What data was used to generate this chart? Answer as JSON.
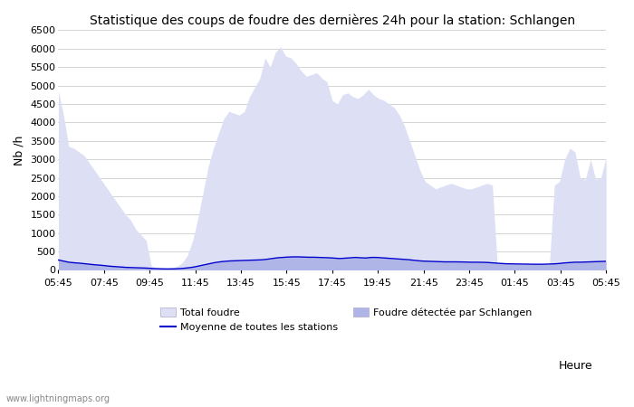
{
  "title": "Statistique des coups de foudre des dernières 24h pour la station: Schlangen",
  "xlabel": "Heure",
  "ylabel": "Nb /h",
  "watermark": "www.lightningmaps.org",
  "x_ticks": [
    "05:45",
    "07:45",
    "09:45",
    "11:45",
    "13:45",
    "15:45",
    "17:45",
    "19:45",
    "21:45",
    "23:45",
    "01:45",
    "03:45",
    "05:45"
  ],
  "ylim": [
    0,
    6500
  ],
  "yticks": [
    0,
    500,
    1000,
    1500,
    2000,
    2500,
    3000,
    3500,
    4000,
    4500,
    5000,
    5500,
    6000,
    6500
  ],
  "bg_color": "#ffffff",
  "grid_color": "#cccccc",
  "fill_total_color": "#dde0f5",
  "fill_station_color": "#b0b5e8",
  "line_color": "#0000cc",
  "total_foudre": [
    4850,
    4200,
    3350,
    3300,
    3200,
    3100,
    2900,
    2700,
    2500,
    2300,
    2100,
    1900,
    1700,
    1500,
    1350,
    1100,
    950,
    800,
    100,
    60,
    50,
    50,
    60,
    100,
    200,
    400,
    800,
    1400,
    2100,
    2800,
    3300,
    3700,
    4100,
    4300,
    4250,
    4200,
    4300,
    4700,
    4950,
    5200,
    5750,
    5500,
    5900,
    6050,
    5800,
    5750,
    5600,
    5400,
    5250,
    5300,
    5350,
    5200,
    5100,
    4600,
    4500,
    4750,
    4800,
    4700,
    4650,
    4750,
    4900,
    4750,
    4650,
    4600,
    4500,
    4400,
    4200,
    3900,
    3500,
    3100,
    2700,
    2400,
    2300,
    2200,
    2250,
    2300,
    2350,
    2300,
    2250,
    2200,
    2200,
    2250,
    2300,
    2350,
    2300,
    50,
    50,
    60,
    50,
    50,
    60,
    50,
    50,
    60,
    50,
    50,
    2300,
    2400,
    3000,
    3300,
    3200,
    2500,
    2450,
    3000,
    2450,
    2500,
    3050
  ],
  "station_foudre": [
    270,
    240,
    210,
    195,
    185,
    170,
    155,
    140,
    130,
    115,
    100,
    90,
    80,
    70,
    65,
    60,
    55,
    50,
    40,
    35,
    30,
    28,
    30,
    35,
    45,
    60,
    80,
    110,
    140,
    170,
    200,
    220,
    235,
    245,
    250,
    255,
    260,
    265,
    270,
    275,
    290,
    310,
    330,
    340,
    350,
    355,
    355,
    350,
    345,
    345,
    340,
    335,
    330,
    320,
    310,
    320,
    330,
    340,
    330,
    325,
    340,
    340,
    330,
    320,
    310,
    300,
    290,
    280,
    265,
    250,
    240,
    235,
    230,
    225,
    220,
    220,
    220,
    218,
    215,
    210,
    210,
    208,
    205,
    195,
    185,
    175,
    168,
    165,
    162,
    160,
    158,
    155,
    155,
    155,
    160,
    165,
    175,
    190,
    200,
    210,
    210,
    215,
    220,
    225,
    230,
    235
  ],
  "legend_total_color": "#dde0f5",
  "legend_station_color": "#b0b5e8",
  "legend_line_color": "#0000cc",
  "title_fontsize": 10,
  "tick_fontsize": 8,
  "label_fontsize": 9
}
